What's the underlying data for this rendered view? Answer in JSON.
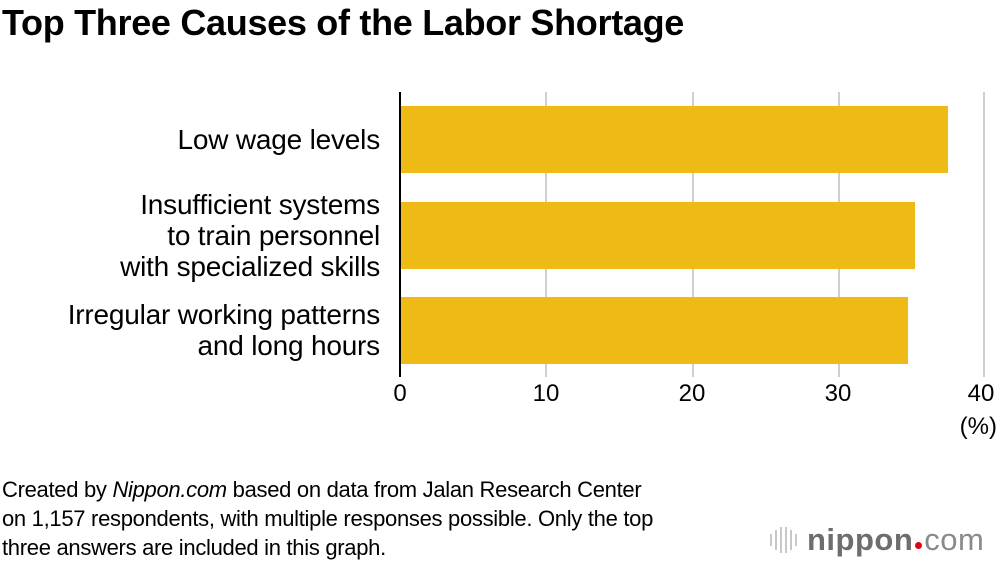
{
  "title": "Top Three Causes of the Labor Shortage",
  "colors": {
    "bar": "#F0BA16",
    "gridline": "#CFCFCF",
    "axis": "#000000",
    "logo_text": "#6D6D6D",
    "logo_dot": "#E60012"
  },
  "chart_data": {
    "type": "bar",
    "orientation": "horizontal",
    "title": "Top Three Causes of the Labor Shortage",
    "categories": [
      "Low wage levels",
      "Insufficient systems to train personnel with specialized skills",
      "Irregular working patterns and long hours"
    ],
    "values": [
      37.5,
      35.3,
      34.8
    ],
    "xlabel": "(%)",
    "ylabel": "",
    "xlim": [
      0,
      40
    ],
    "xticks": [
      0,
      10,
      20,
      30,
      40
    ],
    "grid": true,
    "legend": null
  },
  "categories_display": [
    {
      "lines": [
        "Low wage levels"
      ]
    },
    {
      "lines": [
        "Insufficient systems",
        "to train personnel",
        "with specialized skills"
      ]
    },
    {
      "lines": [
        "Irregular working patterns",
        "and long hours"
      ]
    }
  ],
  "axis": {
    "ticks": [
      "0",
      "10",
      "20",
      "30",
      "40"
    ],
    "unit": "(%)"
  },
  "footer": {
    "prefix": "Created by ",
    "source_italic": "Nippon.com",
    "line1_rest": " based on data from Jalan Research Center",
    "line2": "on 1,157 respondents, with multiple responses possible. Only the top",
    "line3": "three answers are included in this graph."
  },
  "logo": {
    "word": "nippon",
    "suffix": "com"
  }
}
